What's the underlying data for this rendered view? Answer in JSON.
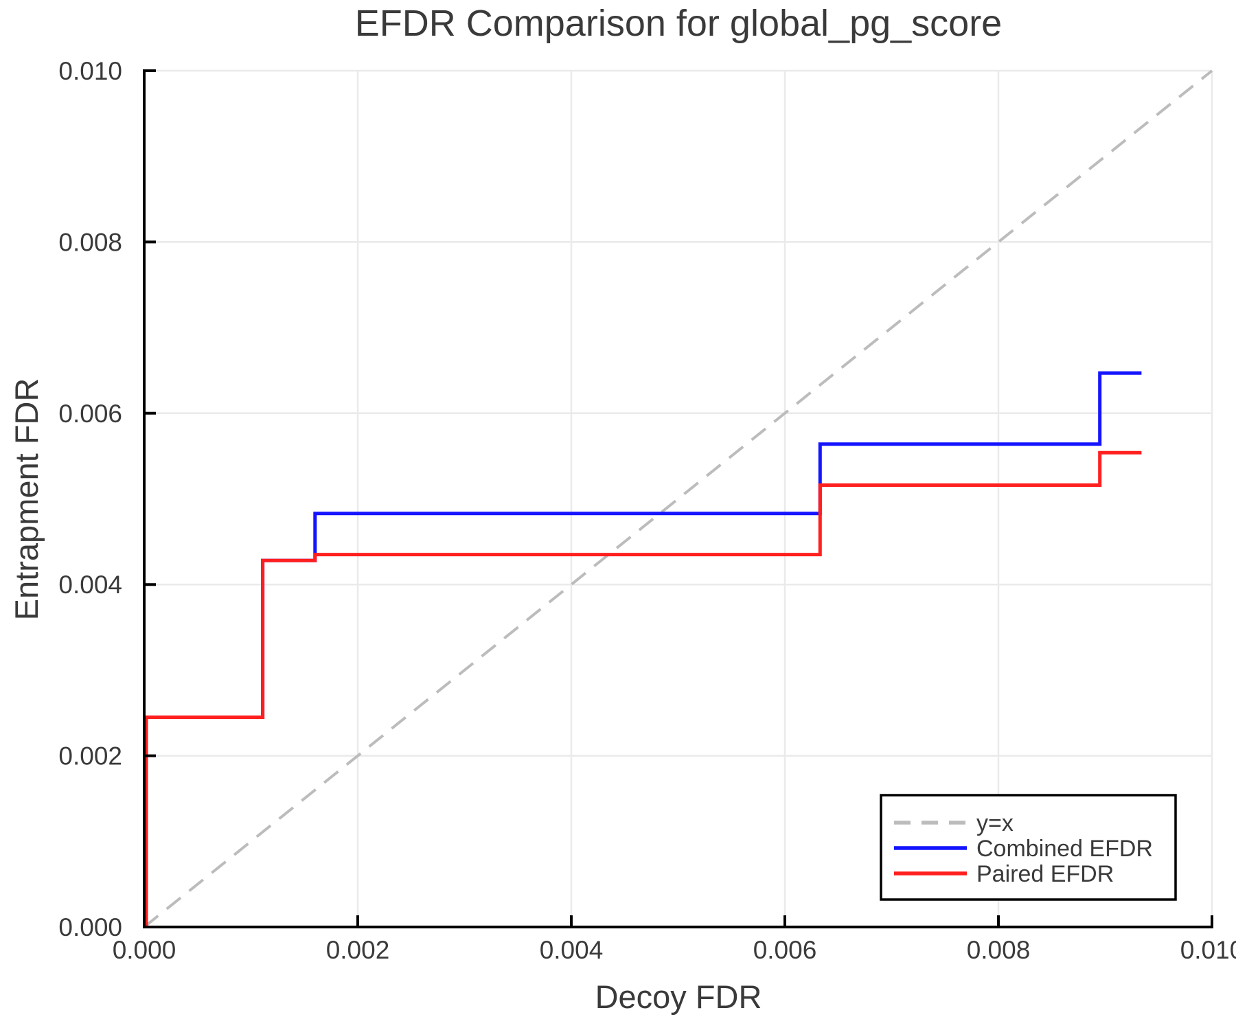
{
  "chart_data": {
    "type": "line",
    "subtype": "step",
    "title": "EFDR Comparison for global_pg_score",
    "xlabel": "Decoy FDR",
    "ylabel": "Entrapment FDR",
    "xlim": [
      0.0,
      0.01
    ],
    "ylim": [
      0.0,
      0.01
    ],
    "xtick_values": [
      0.0,
      0.002,
      0.004,
      0.006,
      0.008,
      0.01
    ],
    "ytick_values": [
      0.0,
      0.002,
      0.004,
      0.006,
      0.008,
      0.01
    ],
    "xticks": [
      "0.000",
      "0.002",
      "0.004",
      "0.006",
      "0.008",
      "0.010"
    ],
    "yticks": [
      "0.000",
      "0.002",
      "0.004",
      "0.006",
      "0.008",
      "0.010"
    ],
    "grid": true,
    "legend_position": "lower right",
    "reference_line": {
      "name": "y=x",
      "from": [
        0.0,
        0.0
      ],
      "to": [
        0.01,
        0.01
      ],
      "style": "dashed",
      "color": "#bcbcbc"
    },
    "series": [
      {
        "name": "Combined EFDR",
        "color": "#1414ff",
        "points": [
          [
            0.0,
            0.0
          ],
          [
            0.0,
            0.00245
          ],
          [
            0.00111,
            0.00245
          ],
          [
            0.00111,
            0.00428
          ],
          [
            0.0016,
            0.00428
          ],
          [
            0.0016,
            0.00483
          ],
          [
            0.00633,
            0.00483
          ],
          [
            0.00633,
            0.00564
          ],
          [
            0.00895,
            0.00564
          ],
          [
            0.00895,
            0.00647
          ],
          [
            0.00934,
            0.00647
          ]
        ]
      },
      {
        "name": "Paired EFDR",
        "color": "#ff1f1f",
        "points": [
          [
            0.0,
            0.0
          ],
          [
            0.0,
            0.00245
          ],
          [
            0.00111,
            0.00245
          ],
          [
            0.00111,
            0.00428
          ],
          [
            0.0016,
            0.00428
          ],
          [
            0.0016,
            0.00435
          ],
          [
            0.00633,
            0.00435
          ],
          [
            0.00633,
            0.00516
          ],
          [
            0.00895,
            0.00516
          ],
          [
            0.00895,
            0.00554
          ],
          [
            0.00934,
            0.00554
          ]
        ]
      }
    ],
    "legend": [
      {
        "label": "y=x",
        "color": "#bcbcbc",
        "dashed": true
      },
      {
        "label": "Combined EFDR",
        "color": "#1414ff",
        "dashed": false
      },
      {
        "label": "Paired EFDR",
        "color": "#ff1f1f",
        "dashed": false
      }
    ]
  }
}
